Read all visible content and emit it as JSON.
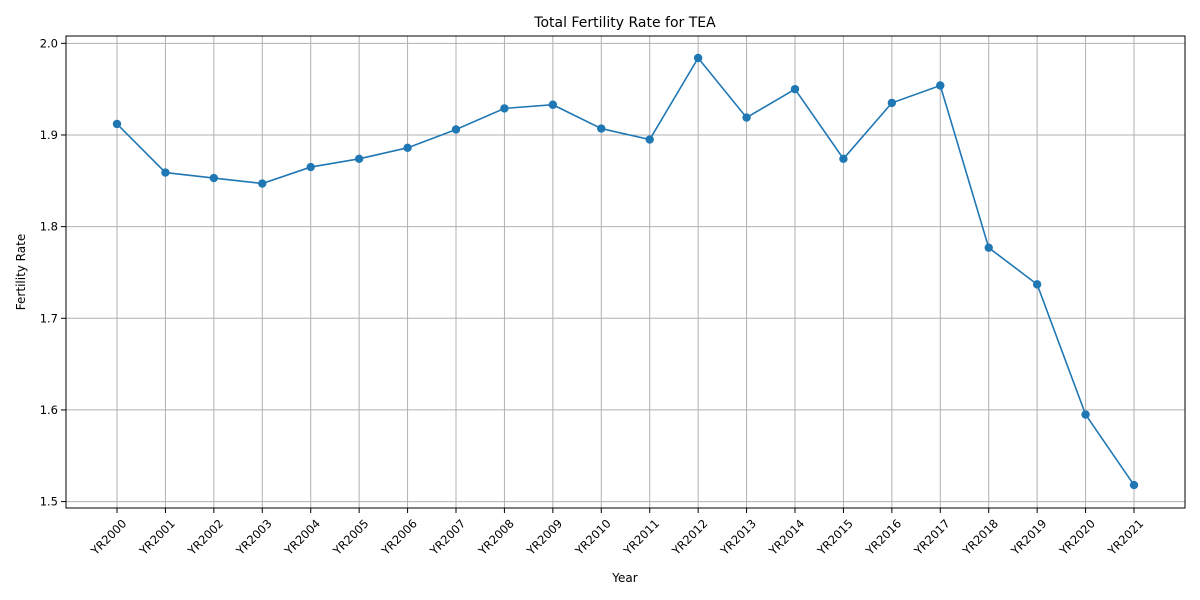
{
  "chart_data": {
    "type": "line",
    "title": "Total Fertility Rate for TEA",
    "xlabel": "Year",
    "ylabel": "Fertility Rate",
    "categories": [
      "YR2000",
      "YR2001",
      "YR2002",
      "YR2003",
      "YR2004",
      "YR2005",
      "YR2006",
      "YR2007",
      "YR2008",
      "YR2009",
      "YR2010",
      "YR2011",
      "YR2012",
      "YR2013",
      "YR2014",
      "YR2015",
      "YR2016",
      "YR2017",
      "YR2018",
      "YR2019",
      "YR2020",
      "YR2021"
    ],
    "series": [
      {
        "values": [
          1.912,
          1.859,
          1.853,
          1.847,
          1.865,
          1.874,
          1.886,
          1.906,
          1.929,
          1.933,
          1.907,
          1.895,
          1.984,
          1.919,
          1.95,
          1.874,
          1.935,
          1.954,
          1.777,
          1.737,
          1.595,
          1.518
        ],
        "color": "#1f77b4",
        "marker": "circle"
      }
    ],
    "ylim": [
      1.493,
      2.008
    ],
    "yticks": [
      "1.5",
      "1.6",
      "1.7",
      "1.8",
      "1.9",
      "2.0"
    ],
    "grid": true
  }
}
